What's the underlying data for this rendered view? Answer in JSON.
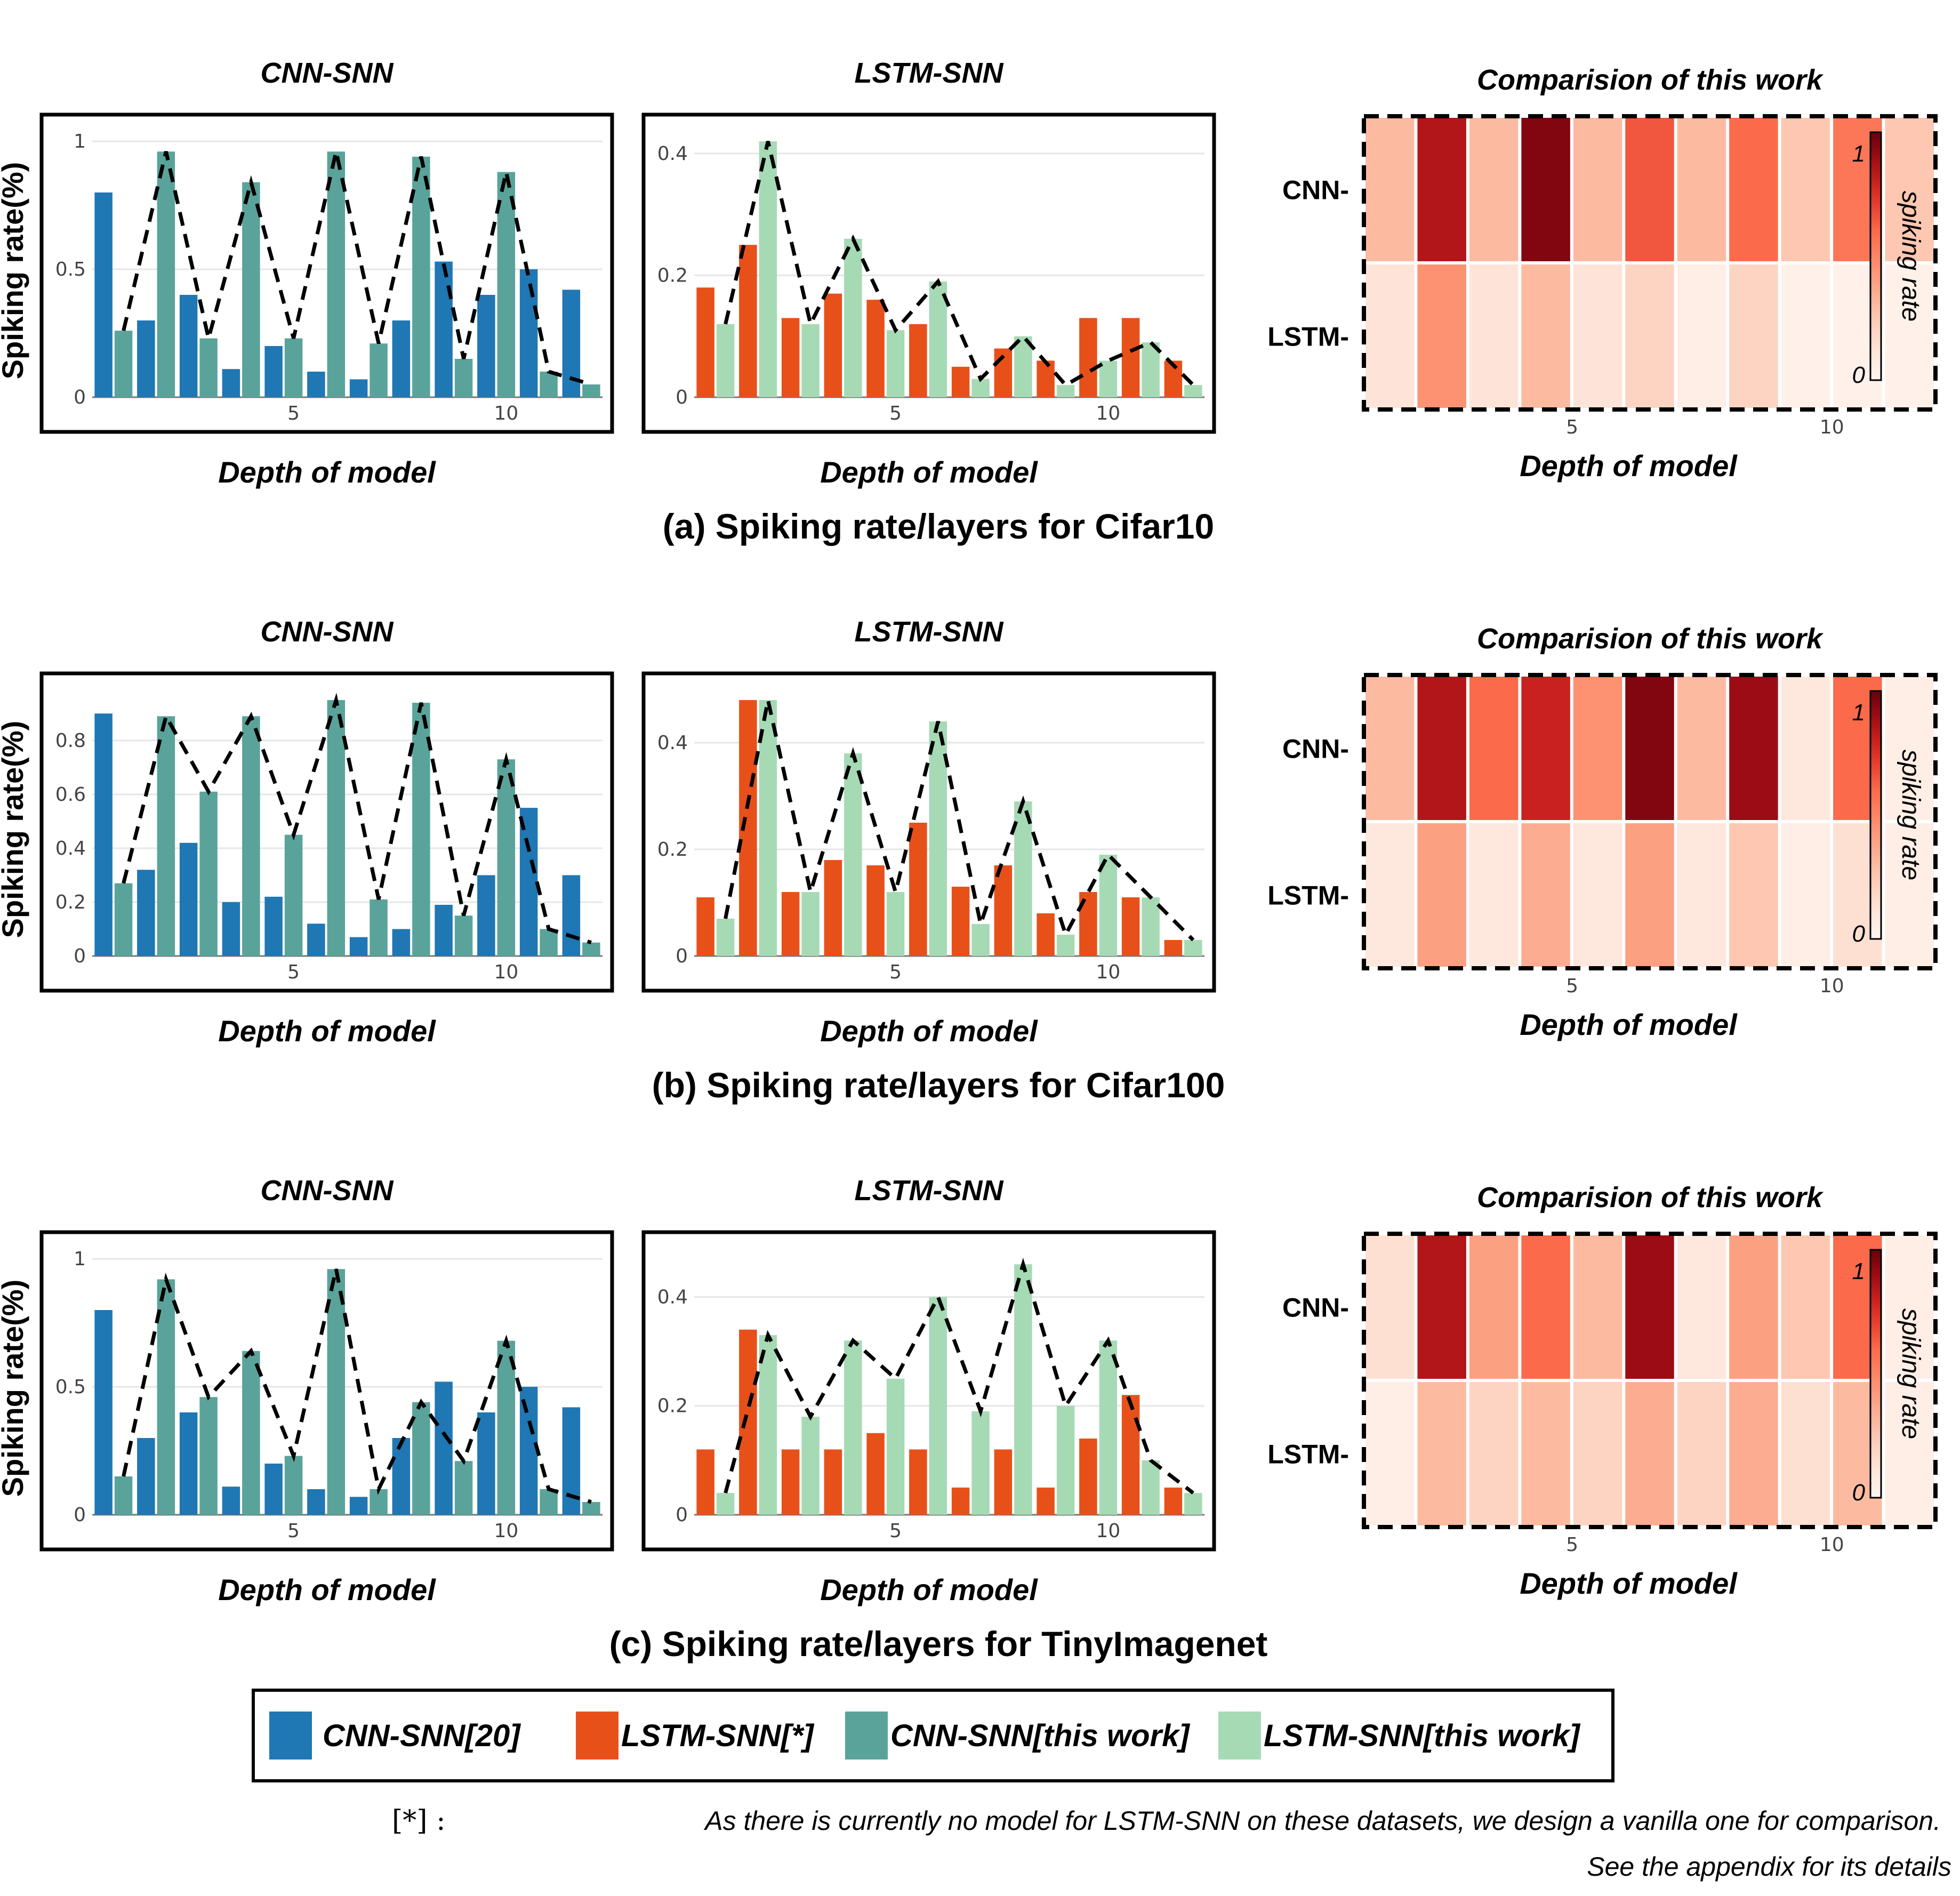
{
  "colors": {
    "cnn_snn_20": "#1f77b4",
    "lstm_snn_star": "#e8501a",
    "cnn_snn_this": "#5aa39a",
    "lstm_snn_this": "#a6dab5",
    "heat_low": "#fff5f0",
    "heat_high": "#67000d"
  },
  "common": {
    "xlabel": "Depth of model",
    "ylabel": "Spiking rate(%)",
    "cnn_title": "CNN-SNN",
    "lstm_title": "LSTM-SNN",
    "heat_title": "Comparision of this work",
    "heat_rows": [
      "CNN-",
      "LSTM-"
    ],
    "colorbar_label": "spiking rate",
    "colorbar_ticks": [
      "1",
      "0"
    ],
    "x_ticks": [
      "5",
      "10"
    ]
  },
  "chart_data": [
    {
      "id": "a",
      "caption": "(a) Spiking rate/layers for Cifar10",
      "cnn": {
        "type": "bar",
        "title": "CNN-SNN",
        "xlabel": "Depth of model",
        "ylabel": "Spiking rate(%)",
        "ylim": [
          0,
          1.0
        ],
        "yticks": [
          "0",
          "0.5",
          "1"
        ],
        "ytick_values": [
          0,
          0.5,
          1.0
        ],
        "x": [
          1,
          2,
          3,
          4,
          5,
          6,
          7,
          8,
          9,
          10,
          11,
          12
        ],
        "series": [
          {
            "name": "CNN-SNN[20]",
            "values": [
              0.8,
              0.3,
              0.4,
              0.11,
              0.2,
              0.1,
              0.07,
              0.3,
              0.53,
              0.4,
              0.5,
              0.42
            ]
          },
          {
            "name": "CNN-SNN[this work]",
            "values": [
              0.26,
              0.96,
              0.23,
              0.84,
              0.23,
              0.96,
              0.21,
              0.94,
              0.15,
              0.88,
              0.1,
              0.05
            ]
          }
        ]
      },
      "lstm": {
        "type": "bar",
        "title": "LSTM-SNN",
        "xlabel": "Depth of model",
        "ylabel": "",
        "ylim": [
          0,
          0.42
        ],
        "yticks": [
          "0",
          "0.2",
          "0.4"
        ],
        "ytick_values": [
          0,
          0.2,
          0.4
        ],
        "x": [
          1,
          2,
          3,
          4,
          5,
          6,
          7,
          8,
          9,
          10,
          11,
          12
        ],
        "series": [
          {
            "name": "LSTM-SNN[*]",
            "values": [
              0.18,
              0.25,
              0.13,
              0.17,
              0.16,
              0.12,
              0.05,
              0.08,
              0.06,
              0.13,
              0.13,
              0.06
            ]
          },
          {
            "name": "LSTM-SNN[this work]",
            "values": [
              0.12,
              0.42,
              0.12,
              0.26,
              0.11,
              0.19,
              0.03,
              0.1,
              0.02,
              0.06,
              0.09,
              0.02
            ]
          }
        ]
      },
      "heatmap": {
        "type": "heatmap",
        "title": "Comparision of this work",
        "rows": [
          "CNN-",
          "LSTM-"
        ],
        "columns": [
          1,
          2,
          3,
          4,
          5,
          6,
          7,
          8,
          9,
          10,
          11
        ],
        "values": [
          [
            0.3,
            0.85,
            0.3,
            0.95,
            0.3,
            0.65,
            0.3,
            0.6,
            0.25,
            0.55,
            0.25
          ],
          [
            0.12,
            0.45,
            0.12,
            0.3,
            0.12,
            0.2,
            0.05,
            0.2,
            0.03,
            0.03,
            0.03
          ]
        ]
      }
    },
    {
      "id": "b",
      "caption": "(b) Spiking rate/layers for Cifar100",
      "cnn": {
        "type": "bar",
        "title": "CNN-SNN",
        "xlabel": "Depth of model",
        "ylabel": "Spiking rate(%)",
        "ylim": [
          0,
          0.95
        ],
        "yticks": [
          "0",
          "0.2",
          "0.4",
          "0.6",
          "0.8"
        ],
        "ytick_values": [
          0,
          0.2,
          0.4,
          0.6,
          0.8
        ],
        "x": [
          1,
          2,
          3,
          4,
          5,
          6,
          7,
          8,
          9,
          10,
          11,
          12
        ],
        "series": [
          {
            "name": "CNN-SNN[20]",
            "values": [
              0.9,
              0.32,
              0.42,
              0.2,
              0.22,
              0.12,
              0.07,
              0.1,
              0.19,
              0.3,
              0.55,
              0.3
            ]
          },
          {
            "name": "CNN-SNN[this work]",
            "values": [
              0.27,
              0.89,
              0.61,
              0.89,
              0.45,
              0.95,
              0.21,
              0.94,
              0.15,
              0.73,
              0.1,
              0.05
            ]
          }
        ]
      },
      "lstm": {
        "type": "bar",
        "title": "LSTM-SNN",
        "xlabel": "Depth of model",
        "ylabel": "",
        "ylim": [
          0,
          0.48
        ],
        "yticks": [
          "0",
          "0.2",
          "0.4"
        ],
        "ytick_values": [
          0,
          0.2,
          0.4
        ],
        "x": [
          1,
          2,
          3,
          4,
          5,
          6,
          7,
          8,
          9,
          10,
          11,
          12
        ],
        "series": [
          {
            "name": "LSTM-SNN[*]",
            "values": [
              0.11,
              0.48,
              0.12,
              0.18,
              0.17,
              0.25,
              0.13,
              0.17,
              0.08,
              0.12,
              0.11,
              0.03
            ]
          },
          {
            "name": "LSTM-SNN[this work]",
            "values": [
              0.07,
              0.48,
              0.12,
              0.38,
              0.12,
              0.44,
              0.06,
              0.29,
              0.04,
              0.19,
              0.11,
              0.03
            ]
          }
        ]
      },
      "heatmap": {
        "type": "heatmap",
        "title": "Comparision of this work",
        "rows": [
          "CNN-",
          "LSTM-"
        ],
        "columns": [
          1,
          2,
          3,
          4,
          5,
          6,
          7,
          8,
          9,
          10,
          11
        ],
        "values": [
          [
            0.3,
            0.85,
            0.6,
            0.8,
            0.45,
            0.95,
            0.3,
            0.9,
            0.1,
            0.6,
            0.05
          ],
          [
            0.1,
            0.4,
            0.1,
            0.35,
            0.1,
            0.4,
            0.1,
            0.25,
            0.05,
            0.15,
            0.05
          ]
        ]
      }
    },
    {
      "id": "c",
      "caption": "(c) Spiking rate/layers for TinyImagenet",
      "cnn": {
        "type": "bar",
        "title": "CNN-SNN",
        "xlabel": "Depth of model",
        "ylabel": "Spiking rate(%)",
        "ylim": [
          0,
          1.0
        ],
        "yticks": [
          "0",
          "0.5",
          "1"
        ],
        "ytick_values": [
          0,
          0.5,
          1.0
        ],
        "x": [
          1,
          2,
          3,
          4,
          5,
          6,
          7,
          8,
          9,
          10,
          11,
          12
        ],
        "series": [
          {
            "name": "CNN-SNN[20]",
            "values": [
              0.8,
              0.3,
              0.4,
              0.11,
              0.2,
              0.1,
              0.07,
              0.3,
              0.52,
              0.4,
              0.5,
              0.42
            ]
          },
          {
            "name": "CNN-SNN[this work]",
            "values": [
              0.15,
              0.92,
              0.46,
              0.64,
              0.23,
              0.96,
              0.1,
              0.44,
              0.21,
              0.68,
              0.1,
              0.05
            ]
          }
        ]
      },
      "lstm": {
        "type": "bar",
        "title": "LSTM-SNN",
        "xlabel": "Depth of model",
        "ylabel": "",
        "ylim": [
          0,
          0.47
        ],
        "yticks": [
          "0",
          "0.2",
          "0.4"
        ],
        "ytick_values": [
          0,
          0.2,
          0.4
        ],
        "x": [
          1,
          2,
          3,
          4,
          5,
          6,
          7,
          8,
          9,
          10,
          11,
          12
        ],
        "series": [
          {
            "name": "LSTM-SNN[*]",
            "values": [
              0.12,
              0.34,
              0.12,
              0.12,
              0.15,
              0.12,
              0.05,
              0.12,
              0.05,
              0.14,
              0.22,
              0.05
            ]
          },
          {
            "name": "LSTM-SNN[this work]",
            "values": [
              0.04,
              0.33,
              0.18,
              0.32,
              0.25,
              0.4,
              0.19,
              0.46,
              0.2,
              0.32,
              0.1,
              0.04
            ]
          }
        ]
      },
      "heatmap": {
        "type": "heatmap",
        "title": "Comparision of this work",
        "rows": [
          "CNN-",
          "LSTM-"
        ],
        "columns": [
          1,
          2,
          3,
          4,
          5,
          6,
          7,
          8,
          9,
          10,
          11
        ],
        "values": [
          [
            0.15,
            0.85,
            0.4,
            0.6,
            0.3,
            0.9,
            0.1,
            0.4,
            0.25,
            0.6,
            0.05
          ],
          [
            0.05,
            0.3,
            0.2,
            0.3,
            0.2,
            0.35,
            0.2,
            0.35,
            0.15,
            0.3,
            0.05
          ]
        ]
      }
    }
  ],
  "legend": {
    "items": [
      {
        "label": "CNN-SNN[20]",
        "color": "#1f77b4"
      },
      {
        "label": "LSTM-SNN[*]",
        "color": "#e8501a"
      },
      {
        "label": "CNN-SNN[this work]",
        "color": "#5aa39a"
      },
      {
        "label": "LSTM-SNN[this work]",
        "color": "#a6dab5"
      }
    ]
  },
  "footnote": {
    "mark": "[*] :",
    "line1": "As there is currently no model for LSTM-SNN on these datasets, we design a vanilla one for comparison.",
    "line2": "See the appendix for its details"
  }
}
